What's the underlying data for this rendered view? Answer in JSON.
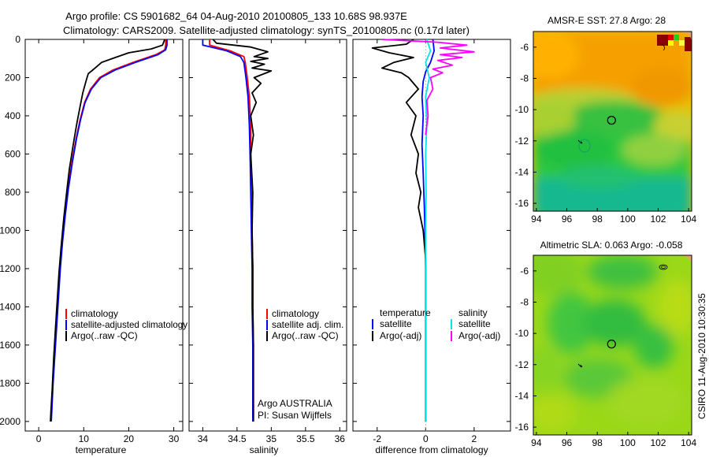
{
  "header": {
    "title_line1": "Argo profile: CS 5901682_64 04-Aug-2010 20100805_133 10.68S 98.937E",
    "title_line2": "Climatology: CARS2009. Satellite-adjusted climatology: synTS_20100805.nc (0.17d later)"
  },
  "side_label": "CSIRO 11-Aug-2010 10:30:35",
  "colors": {
    "climatology": "#ff0000",
    "satellite": "#0000ff",
    "argo": "#000000",
    "sat_salinity_diff": "#00e5ee",
    "argo_salinity_diff": "#ff00ff"
  },
  "chart_data": [
    {
      "type": "line",
      "id": "temperature",
      "xlabel": "temperature",
      "xlim": [
        -3,
        32
      ],
      "ylim": [
        2050,
        0
      ],
      "xticks": [
        0,
        10,
        20,
        30
      ],
      "yticks": [
        0,
        200,
        400,
        600,
        800,
        1000,
        1200,
        1400,
        1600,
        1800,
        2000
      ],
      "legend": [
        "climatology",
        "satellite-adjusted climatology",
        "Argo(..raw -QC)"
      ],
      "series": [
        {
          "name": "climatology",
          "color": "#ff0000",
          "points": [
            [
              28.2,
              0
            ],
            [
              28.2,
              30
            ],
            [
              28.0,
              55
            ],
            [
              26,
              80
            ],
            [
              21,
              120
            ],
            [
              16.5,
              160
            ],
            [
              13.5,
              200
            ],
            [
              11.5,
              260
            ],
            [
              10.2,
              330
            ],
            [
              9.2,
              420
            ],
            [
              8.3,
              520
            ],
            [
              7.4,
              640
            ],
            [
              6.5,
              780
            ],
            [
              5.8,
              920
            ],
            [
              5.2,
              1060
            ],
            [
              4.7,
              1200
            ],
            [
              4.3,
              1350
            ],
            [
              3.9,
              1500
            ],
            [
              3.5,
              1650
            ],
            [
              3.1,
              1800
            ],
            [
              2.8,
              1950
            ],
            [
              2.7,
              2000
            ]
          ]
        },
        {
          "name": "satellite-adjusted climatology",
          "color": "#0000ff",
          "points": [
            [
              28.5,
              0
            ],
            [
              28.5,
              30
            ],
            [
              28.2,
              55
            ],
            [
              26.5,
              80
            ],
            [
              21.5,
              120
            ],
            [
              17,
              160
            ],
            [
              13.8,
              200
            ],
            [
              11.7,
              260
            ],
            [
              10.3,
              330
            ],
            [
              9.3,
              420
            ],
            [
              8.4,
              520
            ],
            [
              7.5,
              640
            ],
            [
              6.6,
              780
            ],
            [
              5.9,
              920
            ],
            [
              5.3,
              1060
            ],
            [
              4.8,
              1200
            ],
            [
              4.4,
              1350
            ],
            [
              4.0,
              1500
            ],
            [
              3.6,
              1650
            ],
            [
              3.2,
              1800
            ],
            [
              2.9,
              1950
            ],
            [
              2.8,
              2000
            ]
          ]
        },
        {
          "name": "Argo(..raw -QC)",
          "color": "#000000",
          "points": [
            [
              28.0,
              0
            ],
            [
              27.5,
              30
            ],
            [
              25,
              50
            ],
            [
              20,
              70
            ],
            [
              17,
              95
            ],
            [
              14,
              120
            ],
            [
              12.5,
              150
            ],
            [
              11,
              180
            ],
            [
              10.5,
              220
            ],
            [
              9.8,
              280
            ],
            [
              9.2,
              350
            ],
            [
              8.4,
              450
            ],
            [
              7.6,
              560
            ],
            [
              6.8,
              680
            ],
            [
              6.2,
              800
            ],
            [
              5.6,
              930
            ],
            [
              5.0,
              1080
            ],
            [
              4.5,
              1220
            ],
            [
              4.1,
              1370
            ],
            [
              3.7,
              1520
            ],
            [
              3.3,
              1680
            ],
            [
              3.0,
              1830
            ],
            [
              2.7,
              1950
            ],
            [
              2.6,
              2000
            ]
          ]
        }
      ]
    },
    {
      "type": "line",
      "id": "salinity",
      "xlabel": "salinity",
      "xlim": [
        33.8,
        36.1
      ],
      "ylim": [
        2050,
        0
      ],
      "xticks": [
        34,
        34.5,
        35,
        35.5,
        36
      ],
      "legend": [
        "climatology",
        "satellite adj. clim.",
        "Argo(..raw -QC)"
      ],
      "annotation": [
        "Argo AUSTRALIA",
        "PI: Susan Wijffels"
      ],
      "series": [
        {
          "name": "climatology",
          "color": "#ff0000",
          "points": [
            [
              34.1,
              0
            ],
            [
              34.1,
              30
            ],
            [
              34.4,
              60
            ],
            [
              34.6,
              90
            ],
            [
              34.62,
              120
            ],
            [
              34.65,
              200
            ],
            [
              34.68,
              300
            ],
            [
              34.7,
              450
            ],
            [
              34.7,
              600
            ],
            [
              34.71,
              800
            ],
            [
              34.72,
              1000
            ],
            [
              34.73,
              1200
            ],
            [
              34.73,
              1400
            ],
            [
              34.74,
              1600
            ],
            [
              34.74,
              1800
            ],
            [
              34.74,
              2000
            ]
          ]
        },
        {
          "name": "satellite adj. clim.",
          "color": "#0000ff",
          "points": [
            [
              34.0,
              0
            ],
            [
              34.0,
              30
            ],
            [
              34.35,
              60
            ],
            [
              34.55,
              90
            ],
            [
              34.6,
              120
            ],
            [
              34.63,
              200
            ],
            [
              34.66,
              300
            ],
            [
              34.68,
              450
            ],
            [
              34.69,
              600
            ],
            [
              34.7,
              800
            ],
            [
              34.71,
              1000
            ],
            [
              34.72,
              1200
            ],
            [
              34.72,
              1400
            ],
            [
              34.73,
              1600
            ],
            [
              34.73,
              1800
            ],
            [
              34.73,
              2000
            ]
          ]
        },
        {
          "name": "Argo(..raw -QC)",
          "color": "#000000",
          "points": [
            [
              34.15,
              0
            ],
            [
              34.2,
              20
            ],
            [
              34.7,
              40
            ],
            [
              34.95,
              65
            ],
            [
              34.75,
              90
            ],
            [
              34.95,
              100
            ],
            [
              34.7,
              115
            ],
            [
              34.9,
              130
            ],
            [
              34.72,
              150
            ],
            [
              35.0,
              165
            ],
            [
              34.75,
              200
            ],
            [
              34.85,
              230
            ],
            [
              34.72,
              280
            ],
            [
              34.78,
              330
            ],
            [
              34.7,
              400
            ],
            [
              34.74,
              500
            ],
            [
              34.7,
              600
            ],
            [
              34.73,
              800
            ],
            [
              34.72,
              1000
            ],
            [
              34.73,
              1200
            ],
            [
              34.73,
              1400
            ],
            [
              34.74,
              1600
            ],
            [
              34.74,
              1800
            ],
            [
              34.74,
              2000
            ]
          ]
        }
      ]
    },
    {
      "type": "line",
      "id": "difference",
      "xlabel": "difference from climatology",
      "xlim": [
        -3,
        3.5
      ],
      "ylim": [
        2050,
        0
      ],
      "xticks": [
        -2,
        0,
        2
      ],
      "legend_left": {
        "header": "temperature",
        "items": [
          "satellite",
          "Argo(-adj)"
        ]
      },
      "legend_right": {
        "header": "salinity",
        "items": [
          "satellite",
          "Argo(-adj)"
        ]
      },
      "series": [
        {
          "name": "temperature satellite",
          "color": "#0000ff",
          "points": [
            [
              0.3,
              0
            ],
            [
              0.35,
              60
            ],
            [
              0.2,
              120
            ],
            [
              0.0,
              170
            ],
            [
              -0.1,
              220
            ],
            [
              -0.15,
              300
            ],
            [
              -0.1,
              400
            ],
            [
              -0.15,
              550
            ],
            [
              -0.1,
              700
            ],
            [
              -0.05,
              900
            ],
            [
              0.0,
              1200
            ],
            [
              0.0,
              1600
            ],
            [
              0.0,
              2000
            ]
          ]
        },
        {
          "name": "temperature Argo(-adj)",
          "color": "#000000",
          "points": [
            [
              -0.5,
              0
            ],
            [
              -0.8,
              25
            ],
            [
              -2.2,
              45
            ],
            [
              -1.5,
              70
            ],
            [
              -0.5,
              95
            ],
            [
              -1.3,
              120
            ],
            [
              -1.8,
              150
            ],
            [
              -1.0,
              175
            ],
            [
              -0.7,
              200
            ],
            [
              -0.3,
              260
            ],
            [
              -0.8,
              330
            ],
            [
              -0.4,
              400
            ],
            [
              -0.6,
              500
            ],
            [
              -0.3,
              600
            ],
            [
              -0.4,
              700
            ],
            [
              -0.2,
              800
            ],
            [
              -0.3,
              880
            ],
            [
              -0.1,
              1000
            ],
            [
              0.0,
              1150
            ],
            [
              0.0,
              1400
            ],
            [
              0.0,
              1700
            ],
            [
              0.0,
              2000
            ]
          ]
        },
        {
          "name": "salinity satellite",
          "color": "#00e5ee",
          "points": [
            [
              0.05,
              0
            ],
            [
              0.2,
              60
            ],
            [
              0.0,
              120
            ],
            [
              0.15,
              200
            ],
            [
              0.0,
              300
            ],
            [
              0.05,
              450
            ],
            [
              0.0,
              600
            ],
            [
              0.02,
              800
            ],
            [
              0.0,
              1000
            ],
            [
              0.0,
              1500
            ],
            [
              0.0,
              2000
            ]
          ]
        },
        {
          "name": "salinity Argo(-adj)",
          "color": "#ff00ff",
          "points": [
            [
              -1.8,
              0
            ],
            [
              0.5,
              15
            ],
            [
              1.7,
              30
            ],
            [
              0.6,
              45
            ],
            [
              2.0,
              65
            ],
            [
              0.6,
              80
            ],
            [
              1.5,
              95
            ],
            [
              0.5,
              110
            ],
            [
              1.1,
              135
            ],
            [
              0.3,
              155
            ],
            [
              0.7,
              175
            ],
            [
              0.2,
              200
            ],
            [
              0.3,
              260
            ],
            [
              0.05,
              320
            ],
            [
              0.1,
              400
            ],
            [
              0.0,
              500
            ]
          ]
        }
      ]
    },
    {
      "type": "heatmap",
      "id": "sst_map",
      "title": "AMSR-E SST: 27.8 Argo: 28",
      "xlim": [
        93.8,
        104.2
      ],
      "ylim": [
        -16.5,
        -5
      ],
      "xticks": [
        94,
        96,
        98,
        100,
        102,
        104
      ],
      "yticks": [
        -6,
        -8,
        -10,
        -12,
        -14,
        -16
      ],
      "argo_position": [
        98.937,
        -10.68
      ]
    },
    {
      "type": "heatmap",
      "id": "sla_map",
      "title": "Altimetric SLA: 0.063 Argo: -0.058",
      "xlim": [
        93.8,
        104.2
      ],
      "ylim": [
        -16.5,
        -5
      ],
      "xticks": [
        94,
        96,
        98,
        100,
        102,
        104
      ],
      "yticks": [
        -6,
        -8,
        -10,
        -12,
        -14,
        -16
      ],
      "argo_position": [
        98.937,
        -10.68
      ]
    }
  ]
}
